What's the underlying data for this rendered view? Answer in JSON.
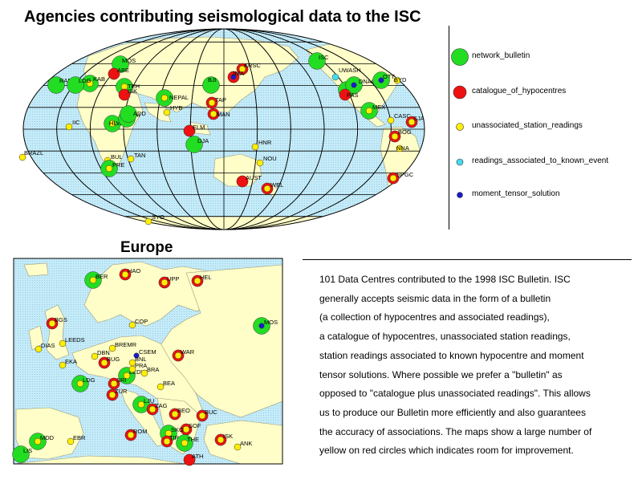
{
  "title": "Agencies contributing seismological data to the ISC",
  "europe_title": "Europe",
  "colors": {
    "ocean": "#bfe6f5",
    "land": "#fffec8",
    "network_bulletin": "#22dd22",
    "catalogue_of_hypocentres": "#ee1111",
    "unassociated_station_readings": "#ffee00",
    "readings_associated_to_known_event": "#44ddee",
    "moment_tensor_solution": "#1a1acc"
  },
  "legend": [
    {
      "key": "network_bulletin",
      "label": "network_bulletin"
    },
    {
      "key": "catalogue_of_hypocentres",
      "label": "catalogue_of_hypocentres"
    },
    {
      "key": "unassociated_station_readings",
      "label": "unassociated_station_readings"
    },
    {
      "key": "readings_associated_to_known_event",
      "label": "readings_associated_to_known_event"
    },
    {
      "key": "moment_tensor_solution",
      "label": "moment_tensor_solution"
    }
  ],
  "description": [
    "101  Data Centres contributed to the 1998 ISC Bulletin. ISC",
    "generally accepts seismic data in the form of a bulletin",
    "(a collection of hypocentres and associated readings),",
    "a catalogue of hypocentres, unassociated station readings,",
    "station readings associated to known hypocentre and moment",
    "tensor solutions. Where possible we prefer a \"bulletin\" as",
    "opposed to \"catalogue plus unassociated readings\". This allows",
    "us to produce our Bulletin more efficiently and also guarantees",
    "the accuracy of associations. The maps show a large number of",
    "yellow on red circles which indicates room for improvement."
  ],
  "world_agencies": [
    {
      "code": "MOS",
      "types": [
        "network_bulletin"
      ]
    },
    {
      "code": "BJI",
      "types": [
        "network_bulletin"
      ]
    },
    {
      "code": "ISC",
      "types": [
        "network_bulletin"
      ]
    },
    {
      "code": "NEPAL",
      "types": [
        "network_bulletin",
        "unassociated_station_readings"
      ]
    },
    {
      "code": "HYB",
      "types": [
        "unassociated_station_readings"
      ]
    },
    {
      "code": "TEH",
      "types": [
        "network_bulletin",
        "unassociated_station_readings"
      ]
    },
    {
      "code": "KRSC",
      "types": [
        "catalogue_of_hypocentres",
        "unassociated_station_readings"
      ]
    },
    {
      "code": "JMA",
      "types": [
        "catalogue_of_hypocentres",
        "moment_tensor_solution"
      ]
    },
    {
      "code": "TAP",
      "types": [
        "catalogue_of_hypocentres",
        "unassociated_station_readings"
      ]
    },
    {
      "code": "MAN",
      "types": [
        "catalogue_of_hypocentres",
        "unassociated_station_readings"
      ]
    },
    {
      "code": "ELM",
      "types": [
        "catalogue_of_hypocentres"
      ]
    },
    {
      "code": "DJA",
      "types": [
        "network_bulletin"
      ]
    },
    {
      "code": "HNR",
      "types": [
        "unassociated_station_readings"
      ]
    },
    {
      "code": "NOU",
      "types": [
        "unassociated_station_readings"
      ]
    },
    {
      "code": "AUST",
      "types": [
        "catalogue_of_hypocentres"
      ]
    },
    {
      "code": "WEL",
      "types": [
        "catalogue_of_hypocentres",
        "unassociated_station_readings"
      ]
    },
    {
      "code": "SYO",
      "types": [
        "unassociated_station_readings"
      ]
    },
    {
      "code": "ASC",
      "types": [
        "network_bulletin"
      ]
    },
    {
      "code": "UWASH",
      "types": [
        "readings_associated_to_known_event"
      ]
    },
    {
      "code": "DNAG",
      "types": [
        "network_bulletin",
        "moment_tensor_solution"
      ]
    },
    {
      "code": "OTT",
      "types": [
        "network_bulletin",
        "moment_tensor_solution"
      ]
    },
    {
      "code": "BYD",
      "types": [
        "unassociated_station_readings"
      ]
    },
    {
      "code": "PAS",
      "types": [
        "catalogue_of_hypocentres"
      ]
    },
    {
      "code": "MEX",
      "types": [
        "network_bulletin",
        "unassociated_station_readings"
      ]
    },
    {
      "code": "CASC",
      "types": [
        "unassociated_station_readings"
      ]
    },
    {
      "code": "SJA",
      "types": [
        "catalogue_of_hypocentres",
        "unassociated_station_readings"
      ]
    },
    {
      "code": "BOG",
      "types": [
        "catalogue_of_hypocentres",
        "unassociated_station_readings"
      ]
    },
    {
      "code": "NNA",
      "types": [
        "unassociated_station_readings"
      ]
    },
    {
      "code": "SPGC",
      "types": [
        "catalogue_of_hypocentres",
        "unassociated_station_readings"
      ]
    },
    {
      "code": "IIC",
      "types": [
        "unassociated_station_readings"
      ]
    },
    {
      "code": "BRAZL",
      "types": [
        "unassociated_station_readings"
      ]
    },
    {
      "code": "BUL",
      "types": [
        "unassociated_station_readings"
      ]
    },
    {
      "code": "PRE",
      "types": [
        "network_bulletin",
        "unassociated_station_readings"
      ]
    },
    {
      "code": "TAN",
      "types": [
        "unassociated_station_readings"
      ]
    },
    {
      "code": "HLW",
      "types": [
        "network_bulletin",
        "unassociated_station_readings"
      ]
    },
    {
      "code": "NAI",
      "types": [
        "network_bulletin",
        "unassociated_station_readings"
      ]
    },
    {
      "code": "ADD",
      "types": [
        "network_bulletin"
      ]
    },
    {
      "code": "ISK",
      "types": [
        "catalogue_of_hypocentres"
      ]
    },
    {
      "code": "ABE",
      "types": [
        "catalogue_of_hypocentres"
      ]
    },
    {
      "code": "KAB",
      "types": [
        "network_bulletin",
        "unassociated_station_readings"
      ]
    },
    {
      "code": "RAB",
      "types": [
        "network_bulletin"
      ]
    },
    {
      "code": "LDG",
      "types": [
        "network_bulletin"
      ]
    }
  ],
  "europe_agencies": [
    {
      "code": "BER",
      "types": [
        "network_bulletin",
        "unassociated_station_readings"
      ]
    },
    {
      "code": "HAO",
      "types": [
        "catalogue_of_hypocentres",
        "unassociated_station_readings"
      ]
    },
    {
      "code": "UPP",
      "types": [
        "catalogue_of_hypocentres",
        "unassociated_station_readings"
      ]
    },
    {
      "code": "HEL",
      "types": [
        "catalogue_of_hypocentres",
        "unassociated_station_readings"
      ]
    },
    {
      "code": "BGS",
      "types": [
        "catalogue_of_hypocentres",
        "unassociated_station_readings"
      ]
    },
    {
      "code": "COP",
      "types": [
        "unassociated_station_readings"
      ]
    },
    {
      "code": "MOS",
      "types": [
        "network_bulletin",
        "moment_tensor_solution"
      ]
    },
    {
      "code": "LEEDS",
      "types": [
        "unassociated_station_readings"
      ]
    },
    {
      "code": "DIAS",
      "types": [
        "unassociated_station_readings"
      ]
    },
    {
      "code": "BREMR",
      "types": [
        "unassociated_station_readings"
      ]
    },
    {
      "code": "CSEM",
      "types": [
        "moment_tensor_solution"
      ]
    },
    {
      "code": "WAR",
      "types": [
        "catalogue_of_hypocentres",
        "unassociated_station_readings"
      ]
    },
    {
      "code": "DBN",
      "types": [
        "unassociated_station_readings"
      ]
    },
    {
      "code": "BUG",
      "types": [
        "catalogue_of_hypocentres",
        "unassociated_station_readings"
      ]
    },
    {
      "code": "BNL",
      "types": [
        "unassociated_station_readings"
      ]
    },
    {
      "code": "EKA",
      "types": [
        "unassociated_station_readings"
      ]
    },
    {
      "code": "LEDW",
      "types": [
        "network_bulletin",
        "unassociated_station_readings"
      ]
    },
    {
      "code": "PRA",
      "types": [
        "unassociated_station_readings"
      ]
    },
    {
      "code": "LDG",
      "types": [
        "network_bulletin",
        "unassociated_station_readings"
      ]
    },
    {
      "code": "BRA",
      "types": [
        "unassociated_station_readings"
      ]
    },
    {
      "code": "SRI",
      "types": [
        "catalogue_of_hypocentres",
        "unassociated_station_readings"
      ]
    },
    {
      "code": "ZUR",
      "types": [
        "catalogue_of_hypocentres",
        "unassociated_station_readings"
      ]
    },
    {
      "code": "BEA",
      "types": [
        "unassociated_station_readings"
      ]
    },
    {
      "code": "LJU",
      "types": [
        "network_bulletin",
        "unassociated_station_readings"
      ]
    },
    {
      "code": "ZAG",
      "types": [
        "catalogue_of_hypocentres",
        "unassociated_station_readings"
      ]
    },
    {
      "code": "BEO",
      "types": [
        "catalogue_of_hypocentres",
        "unassociated_station_readings"
      ]
    },
    {
      "code": "BUC",
      "types": [
        "catalogue_of_hypocentres",
        "unassociated_station_readings"
      ]
    },
    {
      "code": "SOF",
      "types": [
        "catalogue_of_hypocentres",
        "unassociated_station_readings"
      ]
    },
    {
      "code": "ROM",
      "types": [
        "catalogue_of_hypocentres",
        "unassociated_station_readings"
      ]
    },
    {
      "code": "SKO",
      "types": [
        "network_bulletin",
        "unassociated_station_readings"
      ]
    },
    {
      "code": "TIR",
      "types": [
        "catalogue_of_hypocentres",
        "unassociated_station_readings"
      ]
    },
    {
      "code": "THE",
      "types": [
        "network_bulletin",
        "unassociated_station_readings"
      ]
    },
    {
      "code": "ISK",
      "types": [
        "catalogue_of_hypocentres",
        "unassociated_station_readings"
      ]
    },
    {
      "code": "ANK",
      "types": [
        "unassociated_station_readings"
      ]
    },
    {
      "code": "ATH",
      "types": [
        "catalogue_of_hypocentres"
      ]
    },
    {
      "code": "MDD",
      "types": [
        "network_bulletin",
        "unassociated_station_readings"
      ]
    },
    {
      "code": "EBR",
      "types": [
        "unassociated_station_readings"
      ]
    },
    {
      "code": "LIS",
      "types": [
        "network_bulletin"
      ]
    }
  ]
}
